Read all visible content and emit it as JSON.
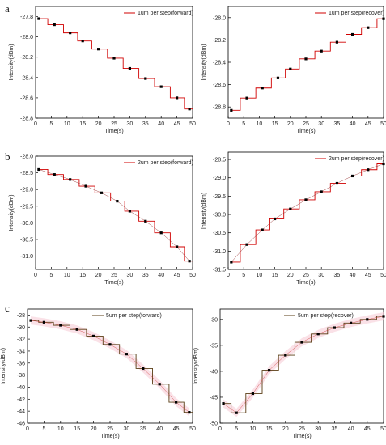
{
  "panel_labels": [
    "a",
    "b",
    "c"
  ],
  "chart_data": [
    {
      "type": "line",
      "panel": "a",
      "xlabel": "Time(s)",
      "ylabel": "Intensity(dBm)",
      "xlim": [
        0,
        50
      ],
      "ylim": [
        -28.8,
        -27.7
      ],
      "xticks": [
        0,
        5,
        10,
        15,
        20,
        25,
        30,
        35,
        40,
        45,
        50
      ],
      "xtick_labels": [
        "0",
        "5",
        "10",
        "15",
        "20",
        "25",
        "30",
        "35",
        "40",
        "45",
        "50"
      ],
      "yticks": [
        -27.8,
        -28.0,
        -28.2,
        -28.4,
        -28.6,
        -28.8
      ],
      "ytick_labels": [
        "-27.8",
        "-28.0",
        "-28.2",
        "-28.4",
        "-28.6",
        "-28.8"
      ],
      "legend": "1um per step(forward)",
      "legend_position": "top-right",
      "colors": {
        "step": "#d00000",
        "markers": "#000000"
      },
      "series": [
        {
          "name": "1um per step(forward)",
          "x": [
            1,
            6,
            11,
            15,
            20,
            25,
            30,
            35,
            40,
            45,
            49
          ],
          "y": [
            -27.82,
            -27.88,
            -27.96,
            -28.04,
            -28.12,
            -28.21,
            -28.31,
            -28.41,
            -28.49,
            -28.6,
            -28.71
          ]
        }
      ]
    },
    {
      "type": "line",
      "panel": "a-right",
      "xlabel": "Time(s)",
      "ylabel": "Intensity(dBm)",
      "xlim": [
        0,
        50
      ],
      "ylim": [
        -28.9,
        -27.9
      ],
      "xticks": [
        0,
        5,
        10,
        15,
        20,
        25,
        30,
        35,
        40,
        45,
        50
      ],
      "xtick_labels": [
        "0",
        "5",
        "10",
        "15",
        "20",
        "25",
        "30",
        "35",
        "40",
        "45",
        "50"
      ],
      "yticks": [
        -28.0,
        -28.2,
        -28.4,
        -28.6,
        -28.8
      ],
      "ytick_labels": [
        "-28.0",
        "-28.2",
        "-28.4",
        "-28.6",
        "-28.8"
      ],
      "legend": "1um per step(recover)",
      "legend_position": "top-right",
      "colors": {
        "step": "#d00000",
        "markers": "#000000"
      },
      "series": [
        {
          "name": "1um per step(recover)",
          "x": [
            1,
            6,
            11,
            16,
            20,
            25,
            30,
            35,
            40,
            45,
            50
          ],
          "y": [
            -28.83,
            -28.72,
            -28.63,
            -28.54,
            -28.46,
            -28.37,
            -28.3,
            -28.22,
            -28.15,
            -28.09,
            -28.01
          ]
        }
      ]
    },
    {
      "type": "line",
      "panel": "b",
      "xlabel": "Time(s)",
      "ylabel": "Intensity(dBm)",
      "xlim": [
        0,
        50
      ],
      "ylim": [
        -31.4,
        -28.0
      ],
      "xticks": [
        0,
        5,
        10,
        15,
        20,
        25,
        30,
        35,
        40,
        45,
        50
      ],
      "xtick_labels": [
        "0",
        "5",
        "10",
        "15",
        "20",
        "25",
        "30",
        "35",
        "40",
        "45",
        "50"
      ],
      "yticks": [
        -28.0,
        -28.5,
        -29.0,
        -29.5,
        -30.0,
        -30.5,
        -31.0
      ],
      "ytick_labels": [
        "-28.0",
        "-28.5",
        "-29.0",
        "-29.5",
        "-30.0",
        "-30.5",
        "-31.0"
      ],
      "legend": "2um per step(forward)",
      "legend_position": "top-right",
      "colors": {
        "step": "#d00000",
        "fit": "#8b1a1a",
        "markers": "#000000"
      },
      "series": [
        {
          "name": "2um per step(forward)",
          "x": [
            1,
            6,
            11,
            16,
            21,
            26,
            30,
            35,
            40,
            45,
            49
          ],
          "y": [
            -28.4,
            -28.55,
            -28.7,
            -28.9,
            -29.1,
            -29.35,
            -29.65,
            -29.95,
            -30.3,
            -30.72,
            -31.15
          ]
        }
      ]
    },
    {
      "type": "line",
      "panel": "b-right",
      "xlabel": "Time(s)",
      "ylabel": "Intensity(dBm)",
      "xlim": [
        0,
        50
      ],
      "ylim": [
        -31.5,
        -28.3
      ],
      "xticks": [
        0,
        5,
        10,
        15,
        20,
        25,
        30,
        35,
        40,
        45,
        50
      ],
      "xtick_labels": [
        "0",
        "5",
        "10",
        "15",
        "20",
        "25",
        "30",
        "35",
        "40",
        "45",
        "50"
      ],
      "yticks": [
        -28.5,
        -29.0,
        -29.5,
        -30.0,
        -30.5,
        -31.0,
        -31.5
      ],
      "ytick_labels": [
        "-28.5",
        "-29.0",
        "-29.5",
        "-30.0",
        "-30.5",
        "-31.0",
        "-31.5"
      ],
      "legend": "2um per step(recover)",
      "legend_position": "top-right",
      "colors": {
        "step": "#d00000",
        "fit": "#8b1a1a",
        "markers": "#000000"
      },
      "series": [
        {
          "name": "2um per step(recover)",
          "x": [
            1,
            6,
            11,
            15,
            20,
            25,
            30,
            35,
            40,
            45,
            50
          ],
          "y": [
            -31.3,
            -30.82,
            -30.42,
            -30.12,
            -29.85,
            -29.6,
            -29.38,
            -29.15,
            -28.95,
            -28.78,
            -28.62
          ]
        }
      ]
    },
    {
      "type": "line",
      "panel": "c",
      "xlabel": "Time(s)",
      "ylabel": "Intensity(dBm)",
      "xlim": [
        0,
        50
      ],
      "ylim": [
        -46,
        -27
      ],
      "xticks": [
        0,
        5,
        10,
        15,
        20,
        25,
        30,
        35,
        40,
        45,
        50
      ],
      "xtick_labels": [
        "0",
        "5",
        "10",
        "15",
        "20",
        "25",
        "30",
        "35",
        "40",
        "45",
        "50"
      ],
      "yticks": [
        -28,
        -30,
        -32,
        -34,
        -36,
        -38,
        -40,
        -42,
        -44,
        -46
      ],
      "ytick_labels": [
        "-28",
        "-30",
        "-32",
        "-34",
        "-36",
        "-38",
        "-40",
        "-42",
        "-44",
        "-46"
      ],
      "legend": "5um per step(forward)",
      "legend_position": "top-center",
      "colors": {
        "step": "#5a3c14",
        "fit": "#cc3333",
        "band": "#f6c8d4",
        "markers": "#000000"
      },
      "series": [
        {
          "name": "5um per step(forward)",
          "x": [
            1,
            5,
            10,
            15,
            20,
            25,
            30,
            35,
            40,
            45,
            49
          ],
          "y": [
            -28.9,
            -29.2,
            -29.7,
            -30.4,
            -31.5,
            -32.9,
            -34.5,
            -36.9,
            -39.5,
            -42.5,
            -44.2
          ]
        }
      ]
    },
    {
      "type": "line",
      "panel": "c-right",
      "xlabel": "Time(s)",
      "ylabel": "Intensity(dBm)",
      "xlim": [
        0,
        50
      ],
      "ylim": [
        -50,
        -28
      ],
      "xticks": [
        0,
        5,
        10,
        15,
        20,
        25,
        30,
        35,
        40,
        45,
        50
      ],
      "xtick_labels": [
        "0",
        "5",
        "10",
        "15",
        "20",
        "25",
        "30",
        "35",
        "40",
        "45",
        "50"
      ],
      "yticks": [
        -30,
        -35,
        -40,
        -45,
        -50
      ],
      "ytick_labels": [
        "-30",
        "-35",
        "-40",
        "-45",
        "-50"
      ],
      "legend": "5um per step(recover)",
      "legend_position": "top-center",
      "colors": {
        "step": "#5a3c14",
        "fit": "#cc3333",
        "band": "#f6c8d4",
        "markers": "#000000"
      },
      "series": [
        {
          "name": "5um per step(recover)",
          "x": [
            1,
            5,
            10,
            15,
            20,
            25,
            30,
            35,
            40,
            45,
            50
          ],
          "y": [
            -46.2,
            -48.0,
            -44.3,
            -39.8,
            -36.9,
            -34.4,
            -32.8,
            -31.6,
            -30.7,
            -30.0,
            -29.4
          ]
        }
      ]
    }
  ]
}
